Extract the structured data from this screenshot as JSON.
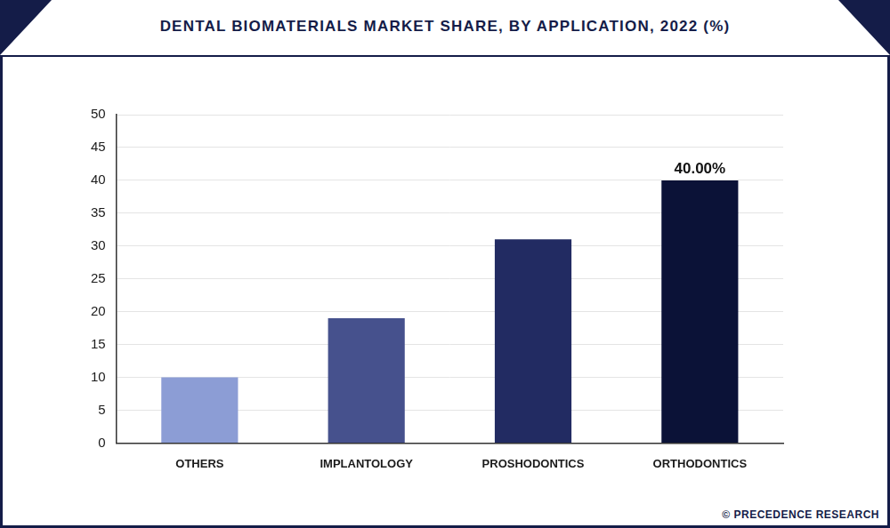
{
  "chart_data": {
    "type": "bar",
    "title": "DENTAL BIOMATERIALS MARKET SHARE, BY APPLICATION, 2022 (%)",
    "categories": [
      "OTHERS",
      "IMPLANTOLOGY",
      "PROSHODONTICS",
      "ORTHODONTICS"
    ],
    "values": [
      10,
      19,
      31,
      40
    ],
    "colors": [
      "#8c9dd5",
      "#46518d",
      "#222b62",
      "#0b1237"
    ],
    "ylim": [
      0,
      50
    ],
    "yticks": [
      0,
      5,
      10,
      15,
      20,
      25,
      30,
      35,
      40,
      45,
      50
    ],
    "grid": true,
    "annotations": [
      {
        "x": "ORTHODONTICS",
        "y": 40,
        "text": "40.00%"
      }
    ],
    "source": "© PRECEDENCE RESEARCH"
  }
}
